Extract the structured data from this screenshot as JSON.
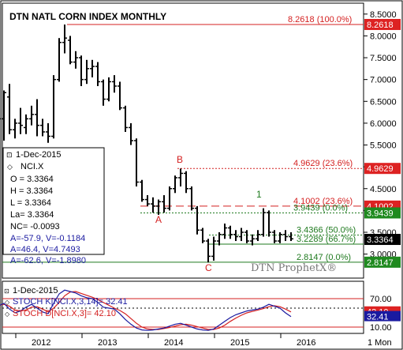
{
  "title": "DTN NATL CORN INDEX MONTHLY",
  "watermark": "DTN ProphetX®",
  "colors": {
    "bar": "#000000",
    "fib_red": "#d42020",
    "fib_green": "#1f7a1f",
    "stoch_k": "#1a1aa0",
    "stoch_d": "#d42020",
    "label_red_bg": "#dd2222",
    "label_green_bg": "#1f8a1f",
    "label_black_bg": "#000000",
    "label_blue_bg": "#1a1aa0"
  },
  "info_box": {
    "date": "1-Dec-2015",
    "symbol": "NCI.X",
    "lines": [
      "O = 3.3364",
      "H = 3.3364",
      "L = 3.3364",
      "La= 3.3364",
      "NC= -0.0093"
    ],
    "blue_lines": [
      "A=-57.9, V=-0.1184",
      "A=46.4, V=4.7493",
      "A=-62.6, V=-1.8980"
    ]
  },
  "fib_labels": [
    {
      "text": "8.2618 (100.0%)",
      "value": 8.2618,
      "color": "red"
    },
    {
      "text": "4.9629 (23.6%)",
      "value": 4.9629,
      "color": "red"
    },
    {
      "text": "4.1002 (23.6%)",
      "value": 4.1002,
      "color": "red"
    },
    {
      "text": "3.9439 (0.0%)",
      "value": 3.9439,
      "color": "green"
    },
    {
      "text": "3.4366 (50.0%)",
      "value": 3.4366,
      "color": "green"
    },
    {
      "text": "3.2289 (66.7%)",
      "value": 3.2289,
      "color": "green"
    },
    {
      "text": "2.8147 (0.0%)",
      "value": 2.8147,
      "color": "green"
    }
  ],
  "point_labels": [
    {
      "text": "A",
      "color": "red"
    },
    {
      "text": "B",
      "color": "red"
    },
    {
      "text": "C",
      "color": "red"
    },
    {
      "text": "1",
      "color": "green"
    }
  ],
  "axis_price_labels": [
    {
      "text": "8.2618",
      "value": 8.2618,
      "bg": "red"
    },
    {
      "text": "4.9629",
      "value": 4.9629,
      "bg": "red"
    },
    {
      "text": "4.1002",
      "value": 4.1002,
      "bg": "red"
    },
    {
      "text": "3.9439",
      "value": 3.9439,
      "bg": "green"
    },
    {
      "text": "3.3364",
      "value": 3.3364,
      "bg": "black"
    },
    {
      "text": "2.8147",
      "value": 2.8147,
      "bg": "green"
    }
  ],
  "stoch": {
    "date": "1-Dec-2015",
    "k_label": "STOCH K[NCI.X,3,14]= 32.41",
    "d_label": "STOCH D[NCI.X,3]= 42.10",
    "ticks": [
      "70.00",
      "10.00"
    ],
    "tick_values": [
      70,
      10
    ],
    "k_value_text": "32.41",
    "d_value_text": "42.10",
    "k_value": 32.41,
    "d_value": 42.1
  },
  "x_axis": {
    "labels": [
      "2012",
      "2013",
      "2014",
      "2015",
      "2016"
    ],
    "period": "1 Mon"
  },
  "chart_data": {
    "type": "ohlc",
    "title": "DTN NATL CORN INDEX MONTHLY",
    "y_ticks": [
      3.0,
      3.5,
      4.0,
      4.5,
      5.0,
      5.5,
      6.0,
      6.5,
      7.0,
      7.5,
      8.0,
      8.5
    ],
    "y_tick_labels": [
      "3.0000",
      "3.5000",
      "4.0000",
      "4.5000",
      "5.0000",
      "5.5000",
      "6.0000",
      "6.5000",
      "7.0000",
      "7.5000",
      "8.0000",
      "8.5000"
    ],
    "ylim": [
      2.45,
      8.75
    ],
    "start": "2011-07",
    "bars": [
      {
        "o": 5.85,
        "h": 6.3,
        "l": 5.62,
        "c": 6.1
      },
      {
        "o": 6.1,
        "h": 6.75,
        "l": 5.6,
        "c": 6.7
      },
      {
        "o": 6.6,
        "h": 6.9,
        "l": 5.75,
        "c": 5.85
      },
      {
        "o": 5.85,
        "h": 6.1,
        "l": 5.65,
        "c": 6.0
      },
      {
        "o": 6.0,
        "h": 6.35,
        "l": 5.75,
        "c": 5.95
      },
      {
        "o": 5.9,
        "h": 6.2,
        "l": 5.75,
        "c": 6.1
      },
      {
        "o": 6.1,
        "h": 6.4,
        "l": 5.95,
        "c": 6.2
      },
      {
        "o": 6.2,
        "h": 6.55,
        "l": 5.7,
        "c": 5.95
      },
      {
        "o": 5.95,
        "h": 6.1,
        "l": 5.7,
        "c": 5.8
      },
      {
        "o": 5.8,
        "h": 6.0,
        "l": 5.55,
        "c": 5.7
      },
      {
        "o": 5.7,
        "h": 7.1,
        "l": 5.65,
        "c": 7.0
      },
      {
        "o": 7.0,
        "h": 7.95,
        "l": 6.95,
        "c": 7.85
      },
      {
        "o": 7.85,
        "h": 8.26,
        "l": 7.6,
        "c": 7.95
      },
      {
        "o": 7.9,
        "h": 8.0,
        "l": 7.35,
        "c": 7.4
      },
      {
        "o": 7.4,
        "h": 7.65,
        "l": 7.25,
        "c": 7.5
      },
      {
        "o": 7.5,
        "h": 7.55,
        "l": 6.85,
        "c": 7.0
      },
      {
        "o": 7.0,
        "h": 7.45,
        "l": 6.9,
        "c": 7.25
      },
      {
        "o": 7.25,
        "h": 7.45,
        "l": 7.05,
        "c": 7.3
      },
      {
        "o": 7.3,
        "h": 7.4,
        "l": 6.85,
        "c": 6.95
      },
      {
        "o": 6.95,
        "h": 7.0,
        "l": 6.4,
        "c": 6.55
      },
      {
        "o": 6.55,
        "h": 7.05,
        "l": 6.5,
        "c": 6.95
      },
      {
        "o": 6.95,
        "h": 7.1,
        "l": 6.7,
        "c": 6.85
      },
      {
        "o": 6.85,
        "h": 6.95,
        "l": 6.3,
        "c": 6.35
      },
      {
        "o": 6.35,
        "h": 6.4,
        "l": 5.8,
        "c": 5.9
      },
      {
        "o": 5.9,
        "h": 6.0,
        "l": 5.5,
        "c": 5.6
      },
      {
        "o": 5.6,
        "h": 5.65,
        "l": 4.55,
        "c": 4.65
      },
      {
        "o": 4.65,
        "h": 4.7,
        "l": 4.2,
        "c": 4.25
      },
      {
        "o": 4.25,
        "h": 4.35,
        "l": 4.1,
        "c": 4.15
      },
      {
        "o": 4.15,
        "h": 4.3,
        "l": 3.95,
        "c": 4.1
      },
      {
        "o": 4.1,
        "h": 4.25,
        "l": 3.9,
        "c": 4.2
      },
      {
        "o": 4.2,
        "h": 4.35,
        "l": 3.95,
        "c": 4.05
      },
      {
        "o": 4.05,
        "h": 4.55,
        "l": 4.0,
        "c": 4.5
      },
      {
        "o": 4.5,
        "h": 4.8,
        "l": 4.4,
        "c": 4.75
      },
      {
        "o": 4.75,
        "h": 4.96,
        "l": 4.55,
        "c": 4.85
      },
      {
        "o": 4.85,
        "h": 4.9,
        "l": 4.4,
        "c": 4.5
      },
      {
        "o": 4.5,
        "h": 4.55,
        "l": 4.0,
        "c": 4.05
      },
      {
        "o": 4.05,
        "h": 4.1,
        "l": 3.45,
        "c": 3.55
      },
      {
        "o": 3.55,
        "h": 3.6,
        "l": 3.25,
        "c": 3.3
      },
      {
        "o": 3.3,
        "h": 3.35,
        "l": 2.81,
        "c": 2.95
      },
      {
        "o": 2.95,
        "h": 3.4,
        "l": 2.85,
        "c": 3.3
      },
      {
        "o": 3.3,
        "h": 3.5,
        "l": 3.2,
        "c": 3.45
      },
      {
        "o": 3.45,
        "h": 3.7,
        "l": 3.35,
        "c": 3.6
      },
      {
        "o": 3.6,
        "h": 3.65,
        "l": 3.35,
        "c": 3.45
      },
      {
        "o": 3.45,
        "h": 3.55,
        "l": 3.3,
        "c": 3.4
      },
      {
        "o": 3.4,
        "h": 3.6,
        "l": 3.3,
        "c": 3.5
      },
      {
        "o": 3.5,
        "h": 3.55,
        "l": 3.25,
        "c": 3.3
      },
      {
        "o": 3.3,
        "h": 3.45,
        "l": 3.2,
        "c": 3.35
      },
      {
        "o": 3.35,
        "h": 3.55,
        "l": 3.3,
        "c": 3.45
      },
      {
        "o": 3.45,
        "h": 4.05,
        "l": 3.4,
        "c": 3.95
      },
      {
        "o": 3.95,
        "h": 4.0,
        "l": 3.4,
        "c": 3.5
      },
      {
        "o": 3.5,
        "h": 3.55,
        "l": 3.25,
        "c": 3.3
      },
      {
        "o": 3.3,
        "h": 3.5,
        "l": 3.25,
        "c": 3.45
      },
      {
        "o": 3.45,
        "h": 3.55,
        "l": 3.3,
        "c": 3.4
      },
      {
        "o": 3.4,
        "h": 3.5,
        "l": 3.3,
        "c": 3.35
      }
    ],
    "stoch_k": [
      55,
      60,
      48,
      40,
      44,
      52,
      58,
      50,
      42,
      38,
      60,
      80,
      88,
      85,
      82,
      76,
      72,
      70,
      62,
      52,
      50,
      48,
      38,
      26,
      16,
      8,
      4,
      3,
      4,
      6,
      8,
      12,
      16,
      18,
      14,
      10,
      6,
      4,
      3,
      6,
      14,
      22,
      30,
      36,
      40,
      44,
      46,
      48,
      52,
      58,
      54,
      50,
      40,
      32
    ],
    "stoch_d": [
      56,
      58,
      54,
      46,
      44,
      46,
      52,
      53,
      48,
      42,
      50,
      62,
      76,
      84,
      85,
      81,
      77,
      73,
      68,
      62,
      56,
      50,
      45,
      38,
      28,
      18,
      10,
      6,
      5,
      5,
      7,
      9,
      12,
      15,
      16,
      14,
      11,
      8,
      5,
      5,
      8,
      14,
      22,
      29,
      35,
      40,
      43,
      46,
      49,
      53,
      55,
      53,
      48,
      42
    ]
  }
}
